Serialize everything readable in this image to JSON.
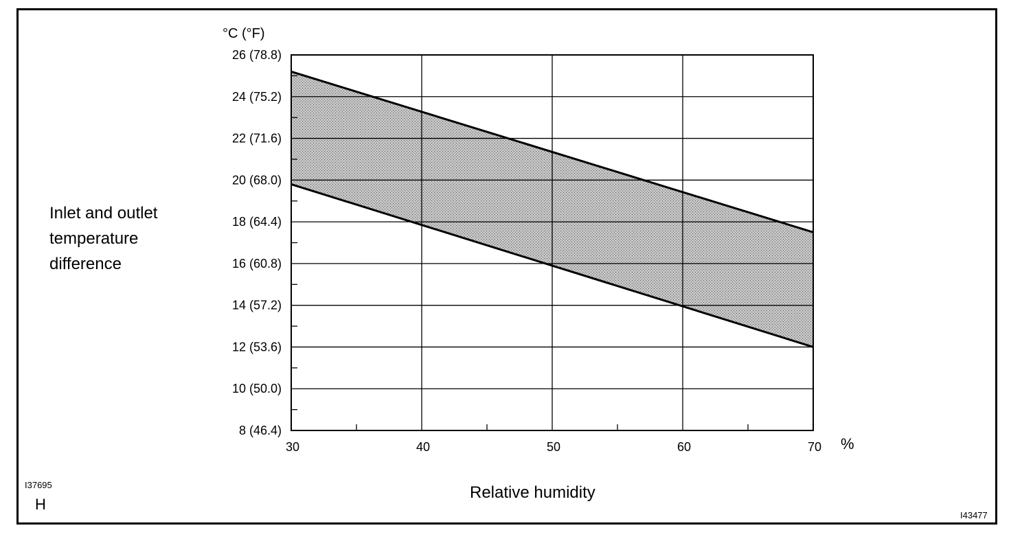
{
  "chart_data": {
    "type": "area",
    "ylabel": "Inlet and outlet temperature difference",
    "yunit": "°C (°F)",
    "xlabel": "Relative humidity",
    "xunit": "%",
    "xlim": [
      30,
      70
    ],
    "ylim": [
      8,
      26
    ],
    "x_ticks": [
      30,
      40,
      50,
      60,
      70
    ],
    "y_ticks": [
      {
        "value": 8,
        "label": "8 (46.4)"
      },
      {
        "value": 10,
        "label": "10 (50.0)"
      },
      {
        "value": 12,
        "label": "12 (53.6)"
      },
      {
        "value": 14,
        "label": "14 (57.2)"
      },
      {
        "value": 16,
        "label": "16 (60.8)"
      },
      {
        "value": 18,
        "label": "18 (64.4)"
      },
      {
        "value": 20,
        "label": "20 (68.0)"
      },
      {
        "value": 22,
        "label": "22 (71.6)"
      },
      {
        "value": 24,
        "label": "24 (75.2)"
      },
      {
        "value": 26,
        "label": "26 (78.8)"
      }
    ],
    "grid": true,
    "band": {
      "upper": {
        "x": [
          30,
          70
        ],
        "y": [
          25.2,
          17.5
        ]
      },
      "lower": {
        "x": [
          30,
          70
        ],
        "y": [
          19.8,
          12.0
        ]
      }
    },
    "colors": {
      "band_fill": "#b8b8b8",
      "line": "#000000"
    }
  },
  "labels": {
    "code_top": "I37695",
    "code_letter": "H",
    "code_bottom": "I43477"
  }
}
